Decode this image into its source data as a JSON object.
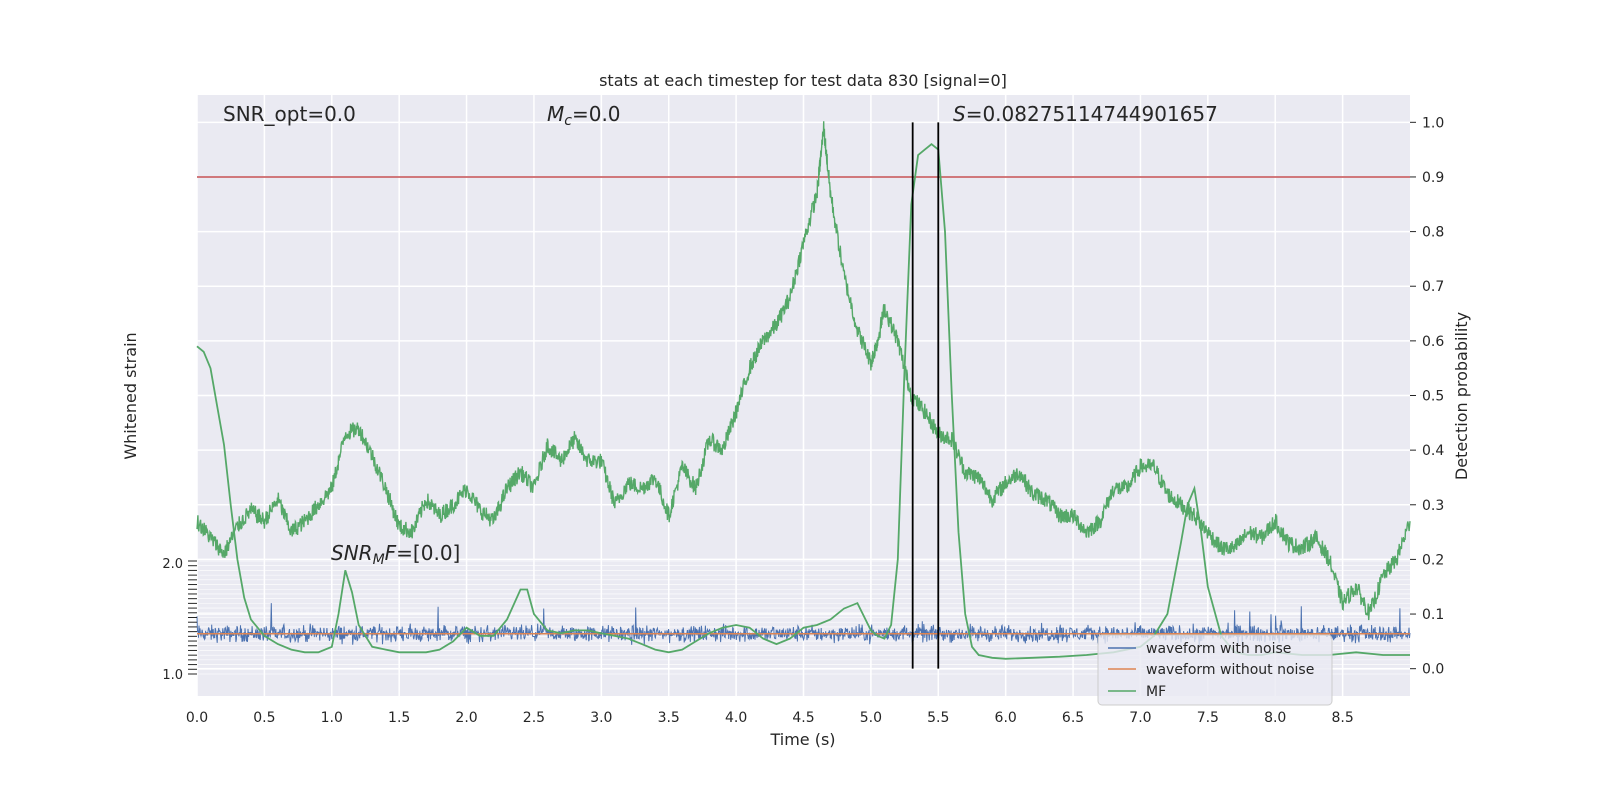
{
  "chart_data": {
    "type": "line",
    "title": "stats at each timestep for test data 830 [signal=0]",
    "xlabel": "Time (s)",
    "ylabel_left": "Whitened strain",
    "ylabel_right": "Detection probability",
    "xlim": [
      0.0,
      9.0
    ],
    "ylim_right": [
      -0.05,
      1.05
    ],
    "x_ticks": [
      "0.0",
      "0.5",
      "1.0",
      "1.5",
      "2.0",
      "2.5",
      "3.0",
      "3.5",
      "4.0",
      "4.5",
      "5.0",
      "5.5",
      "6.0",
      "6.5",
      "7.0",
      "7.5",
      "8.0",
      "8.5"
    ],
    "y_ticks_right": [
      "0.0",
      "0.1",
      "0.2",
      "0.3",
      "0.4",
      "0.5",
      "0.6",
      "0.7",
      "0.8",
      "0.9",
      "1.0"
    ],
    "y_ticks_left_top": "2.0",
    "y_ticks_left_bottom": "1.0",
    "grid": true,
    "threshold": 0.9,
    "threshold_color": "#c44e52",
    "vlines": [
      5.31,
      5.5
    ],
    "annotations": {
      "snr_opt": "SNR_opt=0.0",
      "mc_symbol": "M",
      "mc_sub": "c",
      "mc_value": "=0.0",
      "s_symbol": "S",
      "s_value": "=0.08275114744901657",
      "snrmf_symbol": "SNR",
      "snrmf_sub": "M",
      "snrmf_tail": "F",
      "snrmf_value": "=[0.0]"
    },
    "legend": {
      "placement": "lower-right",
      "items": [
        {
          "label": "waveform with noise",
          "color": "#4c72b0"
        },
        {
          "label": "waveform without noise",
          "color": "#dd8452"
        },
        {
          "label": "MF",
          "color": "#55a868"
        }
      ]
    },
    "series": [
      {
        "name": "waveform with noise",
        "color": "#4c72b0",
        "description_value_range": [
          0.03,
          0.09
        ],
        "center": 0.064
      },
      {
        "name": "waveform without noise",
        "color": "#dd8452",
        "constant": 0.064
      },
      {
        "name": "MF",
        "color": "#55a868",
        "x": [
          0.0,
          0.05,
          0.1,
          0.15,
          0.2,
          0.25,
          0.3,
          0.35,
          0.4,
          0.5,
          0.6,
          0.7,
          0.8,
          0.9,
          1.0,
          1.05,
          1.1,
          1.15,
          1.2,
          1.3,
          1.4,
          1.5,
          1.6,
          1.7,
          1.8,
          1.9,
          2.0,
          2.1,
          2.2,
          2.3,
          2.4,
          2.45,
          2.5,
          2.6,
          2.7,
          2.8,
          2.9,
          3.0,
          3.1,
          3.2,
          3.3,
          3.4,
          3.5,
          3.6,
          3.7,
          3.8,
          3.9,
          4.0,
          4.1,
          4.2,
          4.3,
          4.4,
          4.5,
          4.6,
          4.7,
          4.8,
          4.9,
          5.0,
          5.05,
          5.1,
          5.15,
          5.2,
          5.25,
          5.3,
          5.35,
          5.4,
          5.45,
          5.5,
          5.55,
          5.6,
          5.65,
          5.7,
          5.75,
          5.8,
          5.9,
          6.0,
          6.2,
          6.4,
          6.6,
          6.8,
          7.0,
          7.1,
          7.2,
          7.3,
          7.35,
          7.4,
          7.45,
          7.5,
          7.6,
          7.7,
          7.8,
          7.9,
          8.0,
          8.2,
          8.4,
          8.6,
          8.8,
          9.0
        ],
        "y": [
          0.59,
          0.58,
          0.55,
          0.48,
          0.41,
          0.3,
          0.2,
          0.13,
          0.09,
          0.06,
          0.045,
          0.035,
          0.03,
          0.03,
          0.04,
          0.1,
          0.18,
          0.14,
          0.08,
          0.04,
          0.035,
          0.03,
          0.03,
          0.03,
          0.035,
          0.05,
          0.075,
          0.06,
          0.06,
          0.09,
          0.145,
          0.145,
          0.1,
          0.07,
          0.065,
          0.07,
          0.07,
          0.065,
          0.06,
          0.055,
          0.045,
          0.035,
          0.03,
          0.035,
          0.05,
          0.065,
          0.075,
          0.08,
          0.075,
          0.055,
          0.045,
          0.055,
          0.075,
          0.08,
          0.09,
          0.11,
          0.12,
          0.07,
          0.06,
          0.055,
          0.08,
          0.2,
          0.55,
          0.85,
          0.94,
          0.95,
          0.96,
          0.95,
          0.8,
          0.5,
          0.25,
          0.1,
          0.04,
          0.025,
          0.02,
          0.018,
          0.02,
          0.022,
          0.025,
          0.03,
          0.04,
          0.06,
          0.1,
          0.23,
          0.3,
          0.33,
          0.25,
          0.15,
          0.06,
          0.03,
          0.025,
          0.025,
          0.03,
          0.025,
          0.025,
          0.03,
          0.025,
          0.025
        ]
      },
      {
        "name": "detection probability",
        "color": "#55a868",
        "x": [
          0.0,
          0.1,
          0.2,
          0.3,
          0.4,
          0.5,
          0.6,
          0.7,
          0.8,
          0.9,
          1.0,
          1.1,
          1.2,
          1.3,
          1.4,
          1.5,
          1.6,
          1.7,
          1.8,
          1.9,
          2.0,
          2.1,
          2.2,
          2.3,
          2.4,
          2.5,
          2.6,
          2.7,
          2.8,
          2.9,
          3.0,
          3.1,
          3.2,
          3.3,
          3.4,
          3.5,
          3.6,
          3.7,
          3.8,
          3.9,
          4.0,
          4.1,
          4.2,
          4.3,
          4.4,
          4.5,
          4.6,
          4.65,
          4.7,
          4.8,
          4.9,
          5.0,
          5.05,
          5.1,
          5.2,
          5.3,
          5.4,
          5.5,
          5.6,
          5.7,
          5.8,
          5.9,
          6.0,
          6.1,
          6.2,
          6.3,
          6.4,
          6.5,
          6.6,
          6.7,
          6.8,
          6.9,
          7.0,
          7.1,
          7.2,
          7.3,
          7.4,
          7.5,
          7.6,
          7.7,
          7.8,
          7.9,
          8.0,
          8.1,
          8.2,
          8.3,
          8.4,
          8.5,
          8.6,
          8.7,
          8.8,
          8.9,
          9.0
        ],
        "y": [
          0.27,
          0.24,
          0.21,
          0.26,
          0.29,
          0.27,
          0.31,
          0.25,
          0.27,
          0.3,
          0.33,
          0.43,
          0.44,
          0.39,
          0.33,
          0.26,
          0.25,
          0.31,
          0.28,
          0.3,
          0.33,
          0.29,
          0.27,
          0.33,
          0.36,
          0.33,
          0.41,
          0.38,
          0.42,
          0.38,
          0.38,
          0.3,
          0.34,
          0.33,
          0.35,
          0.28,
          0.37,
          0.33,
          0.42,
          0.4,
          0.47,
          0.55,
          0.6,
          0.63,
          0.68,
          0.78,
          0.87,
          0.99,
          0.87,
          0.72,
          0.62,
          0.56,
          0.6,
          0.66,
          0.6,
          0.5,
          0.47,
          0.43,
          0.42,
          0.36,
          0.35,
          0.31,
          0.34,
          0.36,
          0.32,
          0.31,
          0.28,
          0.28,
          0.25,
          0.27,
          0.33,
          0.33,
          0.37,
          0.37,
          0.32,
          0.3,
          0.28,
          0.25,
          0.22,
          0.22,
          0.25,
          0.24,
          0.27,
          0.23,
          0.22,
          0.24,
          0.2,
          0.12,
          0.15,
          0.1,
          0.17,
          0.2,
          0.27
        ]
      }
    ]
  }
}
